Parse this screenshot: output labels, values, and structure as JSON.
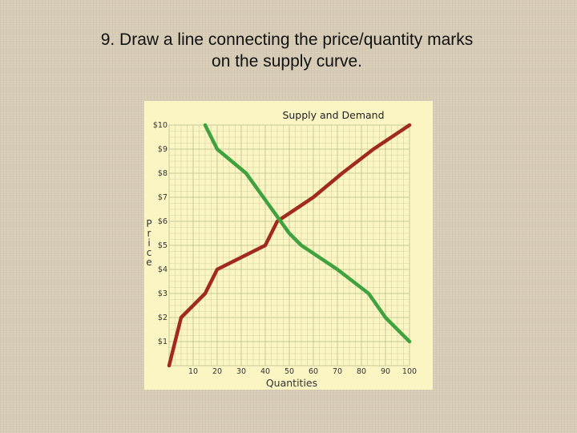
{
  "slide": {
    "title": "9. Draw a line connecting the price/quantity marks on the supply curve."
  },
  "chart_data": {
    "type": "line",
    "title": "Supply and Demand",
    "xlabel": "Quantities",
    "ylabel": "Price",
    "xlim": [
      0,
      100
    ],
    "ylim": [
      0,
      10
    ],
    "x_ticks": [
      "10",
      "20",
      "30",
      "40",
      "50",
      "60",
      "70",
      "80",
      "90",
      "100"
    ],
    "y_ticks": [
      "$1",
      "$2",
      "$3",
      "$4",
      "$5",
      "$6",
      "$7",
      "$8",
      "$9",
      "$10"
    ],
    "grid": true,
    "background": "#fbf5c4",
    "grid_color": "#c9c99a",
    "series": [
      {
        "role": "supply",
        "color": "#a02a1f",
        "points": [
          [
            0,
            0
          ],
          [
            5,
            2
          ],
          [
            15,
            3
          ],
          [
            20,
            4
          ],
          [
            30,
            4.5
          ],
          [
            40,
            5
          ],
          [
            45,
            6
          ],
          [
            60,
            7
          ],
          [
            72,
            8
          ],
          [
            85,
            9
          ],
          [
            100,
            10
          ]
        ]
      },
      {
        "role": "demand",
        "color": "#3fa23f",
        "points": [
          [
            15,
            10
          ],
          [
            20,
            9
          ],
          [
            32,
            8
          ],
          [
            50,
            5.5
          ],
          [
            55,
            5
          ],
          [
            70,
            4
          ],
          [
            83,
            3
          ],
          [
            90,
            2
          ],
          [
            100,
            1
          ]
        ]
      }
    ]
  }
}
